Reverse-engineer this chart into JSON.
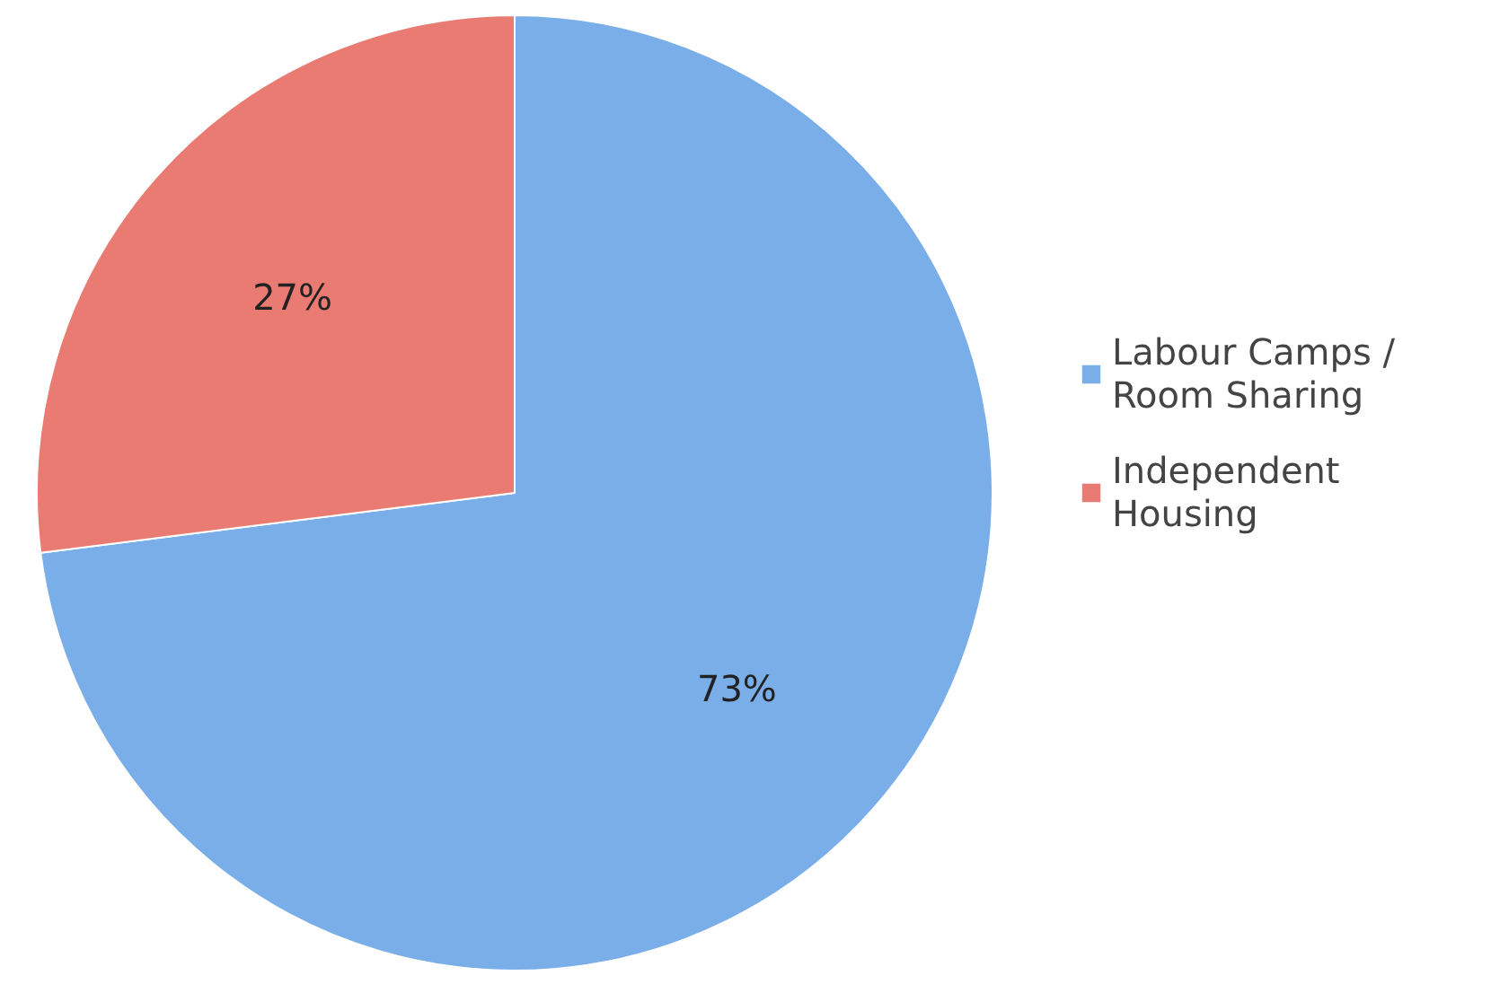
{
  "chart_data": {
    "type": "pie",
    "categories": [
      "Labour Camps / Room Sharing",
      "Independent Housing"
    ],
    "values": [
      73,
      27
    ],
    "colors": [
      "#7aaee8",
      "#e97b72"
    ],
    "value_labels": [
      "73%",
      "27%"
    ],
    "legend": "right"
  }
}
